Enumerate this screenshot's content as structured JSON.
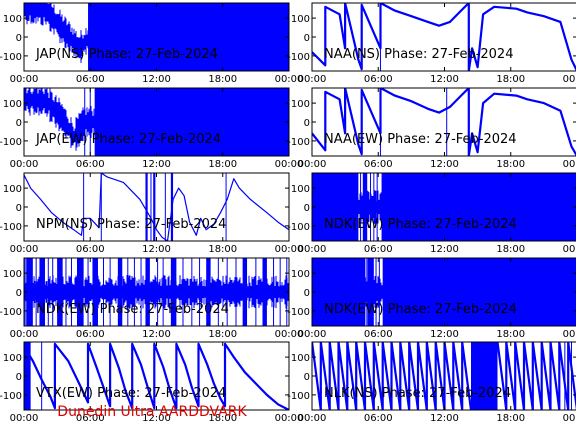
{
  "page": {
    "footer": "Dunedin Ultra AARDDVARK",
    "trace_color": "#0000ff",
    "footer_color": "#e00000"
  },
  "chart_data": [
    {
      "type": "line",
      "title": "JAP(NS) Phase: 27-Feb-2024",
      "xlim": [
        0,
        24
      ],
      "ylim": [
        -180,
        180
      ],
      "xticks": [
        "00:00",
        "06:00",
        "12:00",
        "18:00",
        "00:00"
      ],
      "yticks": [
        100,
        0,
        -100
      ],
      "pattern": "dense-noise",
      "points": [
        [
          0,
          160
        ],
        [
          2,
          140
        ],
        [
          3.5,
          40
        ],
        [
          5,
          -60
        ],
        [
          6,
          0
        ],
        [
          24,
          0
        ]
      ],
      "bands": [
        [
          5.8,
          24
        ]
      ],
      "spikes": [
        6.2,
        6.6,
        6.9,
        7.4,
        7.7
      ]
    },
    {
      "type": "line",
      "title": "NAA(NS) Phase: 27-Feb-2024",
      "xlim": [
        0,
        24
      ],
      "ylim": [
        -180,
        180
      ],
      "xticks": [
        "00:00",
        "06:00",
        "12:00",
        "18:00",
        "00:00"
      ],
      "yticks": [
        100,
        0,
        -100
      ],
      "pattern": "sawtooth",
      "points": [
        [
          0,
          -80
        ],
        [
          1.2,
          -150
        ],
        [
          1.2,
          160
        ],
        [
          2.5,
          120
        ],
        [
          3,
          -60
        ],
        [
          3,
          180
        ],
        [
          4.2,
          -120
        ],
        [
          4.5,
          -170
        ],
        [
          4.5,
          170
        ],
        [
          6.2,
          -60
        ],
        [
          6.2,
          180
        ],
        [
          7.5,
          140
        ],
        [
          9,
          110
        ],
        [
          10.5,
          80
        ],
        [
          11.5,
          60
        ],
        [
          12.5,
          80
        ],
        [
          13.5,
          140
        ],
        [
          14.2,
          180
        ],
        [
          14.2,
          -180
        ],
        [
          14.5,
          -60
        ],
        [
          15,
          -160
        ],
        [
          15.5,
          120
        ],
        [
          16.5,
          160
        ],
        [
          18.5,
          150
        ],
        [
          19.5,
          130
        ],
        [
          21,
          110
        ],
        [
          22.5,
          80
        ],
        [
          23.5,
          -120
        ],
        [
          24,
          -180
        ]
      ],
      "spikes": [
        6.2,
        14.2
      ]
    },
    {
      "type": "line",
      "title": "JAP(EW) Phase: 27-Feb-2024",
      "xlim": [
        0,
        24
      ],
      "ylim": [
        -180,
        180
      ],
      "xticks": [
        "00:00",
        "06:00",
        "12:00",
        "18:00",
        "00:00"
      ],
      "yticks": [
        100,
        0,
        -100
      ],
      "pattern": "dense-noise",
      "points": [
        [
          0,
          120
        ],
        [
          2,
          110
        ],
        [
          3.5,
          20
        ],
        [
          4.5,
          -80
        ],
        [
          5.5,
          0
        ],
        [
          24,
          0
        ]
      ],
      "bands": [
        [
          6.4,
          24
        ]
      ],
      "spikes": [
        5.5,
        6.0
      ]
    },
    {
      "type": "line",
      "title": "NAA(EW) Phase: 27-Feb-2024",
      "xlim": [
        0,
        24
      ],
      "ylim": [
        -180,
        180
      ],
      "xticks": [
        "00:00",
        "06:00",
        "12:00",
        "18:00",
        "00:00"
      ],
      "yticks": [
        100,
        0,
        -100
      ],
      "pattern": "sawtooth",
      "points": [
        [
          0,
          -60
        ],
        [
          1.2,
          -150
        ],
        [
          1.2,
          160
        ],
        [
          2.5,
          120
        ],
        [
          3,
          -60
        ],
        [
          3,
          180
        ],
        [
          4.2,
          -120
        ],
        [
          4.5,
          -170
        ],
        [
          4.5,
          170
        ],
        [
          6.2,
          -60
        ],
        [
          6.2,
          180
        ],
        [
          7.5,
          140
        ],
        [
          9,
          110
        ],
        [
          10.5,
          70
        ],
        [
          11.5,
          50
        ],
        [
          12.5,
          80
        ],
        [
          13.5,
          140
        ],
        [
          14.2,
          180
        ],
        [
          14.2,
          -180
        ],
        [
          14.5,
          -60
        ],
        [
          15,
          -160
        ],
        [
          15.5,
          100
        ],
        [
          16.5,
          150
        ],
        [
          18.5,
          140
        ],
        [
          19.5,
          120
        ],
        [
          21,
          100
        ],
        [
          22.5,
          60
        ],
        [
          23.5,
          -130
        ],
        [
          24,
          -180
        ]
      ],
      "spikes": [
        6.2,
        12.2,
        14.2
      ]
    },
    {
      "type": "line",
      "title": "NPM(NS) Phase: 27-Feb-2024",
      "xlim": [
        0,
        24
      ],
      "ylim": [
        -180,
        180
      ],
      "xticks": [
        "00:00",
        "06:00",
        "12:00",
        "18:00",
        "00:00"
      ],
      "yticks": [
        100,
        0,
        -100
      ],
      "pattern": "line",
      "points": [
        [
          0,
          170
        ],
        [
          0.6,
          100
        ],
        [
          1.5,
          40
        ],
        [
          2.5,
          -30
        ],
        [
          3.5,
          -80
        ],
        [
          4.5,
          -120
        ],
        [
          5.2,
          -150
        ],
        [
          5.4,
          -60
        ],
        [
          6,
          -60
        ],
        [
          6.8,
          -110
        ],
        [
          7,
          180
        ],
        [
          7.5,
          160
        ],
        [
          9,
          130
        ],
        [
          10.5,
          40
        ],
        [
          11.5,
          -60
        ],
        [
          12,
          -120
        ],
        [
          12.5,
          -160
        ],
        [
          13,
          -180
        ],
        [
          13.5,
          40
        ],
        [
          14,
          100
        ],
        [
          14.5,
          60
        ],
        [
          15,
          -80
        ],
        [
          15.6,
          -150
        ],
        [
          16,
          -60
        ],
        [
          16.5,
          -120
        ],
        [
          17.2,
          -90
        ],
        [
          17.8,
          -30
        ],
        [
          18.4,
          40
        ],
        [
          19,
          150
        ],
        [
          19.5,
          100
        ],
        [
          20.5,
          40
        ],
        [
          22,
          -30
        ],
        [
          23,
          -80
        ],
        [
          24,
          -120
        ]
      ],
      "bands": [
        [
          11.0,
          11.2
        ],
        [
          11.7,
          11.9
        ],
        [
          13.3,
          13.5
        ]
      ],
      "spikes": [
        5.4,
        7.0,
        11.5,
        12.8,
        13.4,
        18.3
      ]
    },
    {
      "type": "line",
      "title": "NDK(EW) Phase: 27-Feb-2024",
      "xlim": [
        0,
        24
      ],
      "ylim": [
        -180,
        180
      ],
      "xticks": [
        "00:00",
        "06:00",
        "12:00",
        "18:00",
        "00:00"
      ],
      "yticks": [
        100,
        0,
        -100
      ],
      "pattern": "dense-noise",
      "points": [
        [
          0,
          0
        ],
        [
          24,
          0
        ]
      ],
      "bands": [
        [
          0,
          4.2
        ],
        [
          4.6,
          5.0
        ],
        [
          6.3,
          24
        ]
      ],
      "spikes": [
        4.4,
        5.3,
        5.6,
        5.9
      ]
    },
    {
      "type": "line",
      "title": "NDK(EW) Phase: 27-Feb-2024",
      "xlim": [
        0,
        24
      ],
      "ylim": [
        -180,
        180
      ],
      "xticks": [
        "00:00",
        "06:00",
        "12:00",
        "18:00",
        "00:00"
      ],
      "yticks": [
        100,
        0,
        -100
      ],
      "pattern": "dense-noise",
      "points": [
        [
          0,
          0
        ],
        [
          24,
          0
        ]
      ],
      "bands": [
        [
          0.2,
          0.8
        ],
        [
          1.4,
          1.9
        ],
        [
          3.0,
          3.5
        ],
        [
          4.8,
          5.4
        ],
        [
          6.2,
          6.7
        ],
        [
          8.5,
          8.9
        ],
        [
          11.0,
          11.4
        ],
        [
          13.3,
          13.8
        ],
        [
          16.5,
          16.9
        ],
        [
          19.8,
          20.2
        ],
        [
          21.6,
          22.0
        ]
      ],
      "spikes": [
        0.1,
        1.1,
        2.2,
        2.6,
        3.8,
        4.3,
        5.8,
        7.2,
        7.8,
        9.4,
        10.0,
        10.6,
        12.1,
        12.6,
        14.4,
        15.2,
        15.9,
        17.6,
        18.4,
        19.2,
        21.0,
        22.6,
        23.2,
        23.8
      ]
    },
    {
      "type": "line",
      "title": "NDK(EW) Phase: 27-Feb-2024",
      "xlim": [
        0,
        24
      ],
      "ylim": [
        -180,
        180
      ],
      "xticks": [
        "00:00",
        "06:00",
        "12:00",
        "18:00",
        "00:00"
      ],
      "yticks": [
        100,
        0,
        -100
      ],
      "pattern": "dense-noise",
      "points": [
        [
          0,
          0
        ],
        [
          24,
          0
        ]
      ],
      "bands": [
        [
          0,
          4.8
        ],
        [
          5.0,
          5.6
        ],
        [
          6.4,
          24
        ]
      ],
      "spikes": [
        4.9,
        5.8,
        6.1
      ]
    },
    {
      "type": "line",
      "title": "VTX(EW) Phase: 27-Feb-2024",
      "xlim": [
        0,
        24
      ],
      "ylim": [
        -180,
        180
      ],
      "xticks": [
        "00:00",
        "06:00",
        "12:00",
        "18:00",
        "00:00"
      ],
      "yticks": [
        100,
        0,
        -100
      ],
      "pattern": "sawtooth",
      "points": [
        [
          0,
          160
        ],
        [
          0.8,
          80
        ],
        [
          1.6,
          -20
        ],
        [
          2.4,
          -110
        ],
        [
          2.8,
          -170
        ],
        [
          2.8,
          170
        ],
        [
          4,
          80
        ],
        [
          5,
          -40
        ],
        [
          5.8,
          -140
        ],
        [
          5.8,
          170
        ],
        [
          6.6,
          40
        ],
        [
          7.2,
          -60
        ],
        [
          7.8,
          -160
        ],
        [
          7.8,
          170
        ],
        [
          8.6,
          40
        ],
        [
          9.2,
          -80
        ],
        [
          9.8,
          -170
        ],
        [
          9.8,
          170
        ],
        [
          10.6,
          60
        ],
        [
          11.2,
          -60
        ],
        [
          11.8,
          -170
        ],
        [
          11.8,
          170
        ],
        [
          12.6,
          50
        ],
        [
          13.2,
          -70
        ],
        [
          13.8,
          -170
        ],
        [
          13.8,
          170
        ],
        [
          14.6,
          60
        ],
        [
          15.2,
          -60
        ],
        [
          15.8,
          -160
        ],
        [
          15.8,
          170
        ],
        [
          16.6,
          60
        ],
        [
          17.2,
          -40
        ],
        [
          17.8,
          -120
        ],
        [
          18.2,
          -160
        ],
        [
          18.2,
          170
        ],
        [
          19,
          100
        ],
        [
          20,
          20
        ],
        [
          21,
          -40
        ],
        [
          22,
          -100
        ],
        [
          23,
          -150
        ],
        [
          24,
          -180
        ]
      ],
      "spikes": [
        0.2,
        0.5,
        1.6
      ],
      "bands": [
        [
          0,
          0.6
        ]
      ]
    },
    {
      "type": "line",
      "title": "NLK(NS) Phase: 27-Feb-2024",
      "xlim": [
        0,
        24
      ],
      "ylim": [
        -180,
        180
      ],
      "xticks": [
        "00:00",
        "06:00",
        "12:00",
        "18:00",
        "00:00"
      ],
      "yticks": [
        100,
        0,
        -100
      ],
      "pattern": "sawtooth",
      "points": [
        [
          0,
          180
        ],
        [
          0.8,
          -180
        ],
        [
          0.8,
          180
        ],
        [
          1.6,
          -180
        ],
        [
          1.6,
          180
        ],
        [
          2.4,
          -180
        ],
        [
          2.4,
          180
        ],
        [
          3.2,
          -180
        ],
        [
          3.2,
          180
        ],
        [
          4,
          -180
        ],
        [
          4,
          180
        ],
        [
          4.8,
          -180
        ],
        [
          4.8,
          180
        ],
        [
          5.6,
          -180
        ],
        [
          5.6,
          180
        ],
        [
          6.4,
          -180
        ],
        [
          6.4,
          180
        ],
        [
          7.2,
          -180
        ],
        [
          7.2,
          180
        ],
        [
          8,
          -180
        ],
        [
          8,
          180
        ],
        [
          8.8,
          -180
        ],
        [
          8.8,
          180
        ],
        [
          9.6,
          -180
        ],
        [
          9.6,
          180
        ],
        [
          10.4,
          -180
        ],
        [
          10.4,
          180
        ],
        [
          11.2,
          -180
        ],
        [
          11.2,
          180
        ],
        [
          12,
          -180
        ],
        [
          12,
          180
        ],
        [
          12.8,
          -180
        ],
        [
          12.8,
          180
        ],
        [
          13.6,
          -180
        ],
        [
          13.6,
          180
        ],
        [
          14.4,
          -180
        ],
        [
          16.8,
          180
        ],
        [
          17.6,
          -180
        ],
        [
          17.6,
          180
        ],
        [
          18.4,
          -180
        ],
        [
          18.4,
          180
        ],
        [
          19.2,
          -180
        ],
        [
          19.2,
          180
        ],
        [
          20,
          -180
        ],
        [
          20,
          180
        ],
        [
          20.8,
          -180
        ],
        [
          20.8,
          180
        ],
        [
          21.6,
          -180
        ],
        [
          21.6,
          180
        ],
        [
          22.4,
          -180
        ],
        [
          22.4,
          180
        ],
        [
          23.2,
          -180
        ],
        [
          23.2,
          180
        ],
        [
          24,
          -180
        ]
      ],
      "bands": [
        [
          14.4,
          16.8
        ]
      ],
      "spikes": [
        22.9,
        23.5
      ]
    }
  ]
}
